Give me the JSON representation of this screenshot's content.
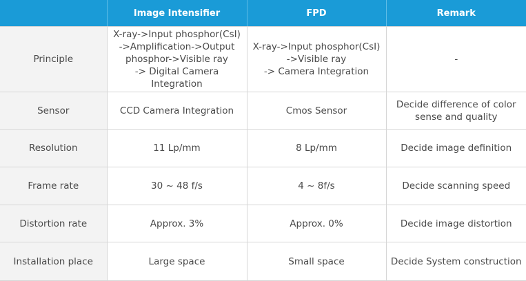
{
  "header": {
    "corner": "",
    "col1": "Image Intensifier",
    "col2": "FPD",
    "col3": "Remark"
  },
  "rows": [
    {
      "label": "Principle",
      "ii": "X-ray->Input phosphor(CsI)\n->Amplification->Output\nphosphor->Visible ray\n-> Digital Camera Integration",
      "fpd": "X-ray->Input phosphor(CsI)\n->Visible ray\n-> Camera Integration",
      "remark": "-"
    },
    {
      "label": "Sensor",
      "ii": "CCD Camera Integration",
      "fpd": "Cmos Sensor",
      "remark": "Decide difference of color\nsense and quality"
    },
    {
      "label": "Resolution",
      "ii": "11 Lp/mm",
      "fpd": "8 Lp/mm",
      "remark": "Decide image definition"
    },
    {
      "label": "Frame rate",
      "ii": "30 ~ 48 f/s",
      "fpd": "4 ~ 8f/s",
      "remark": "Decide scanning speed"
    },
    {
      "label": "Distortion rate",
      "ii": "Approx. 3%",
      "fpd": "Approx. 0%",
      "remark": "Decide image distortion"
    },
    {
      "label": "Installation place",
      "ii": "Large space",
      "fpd": "Small space",
      "remark": "Decide System construction"
    }
  ],
  "colors": {
    "header_bg": "#1a9bd7",
    "header_text": "#ffffff",
    "rowhead_bg": "#f3f3f3",
    "border": "#d6d6d6",
    "cell_text": "#4a4a4a"
  }
}
